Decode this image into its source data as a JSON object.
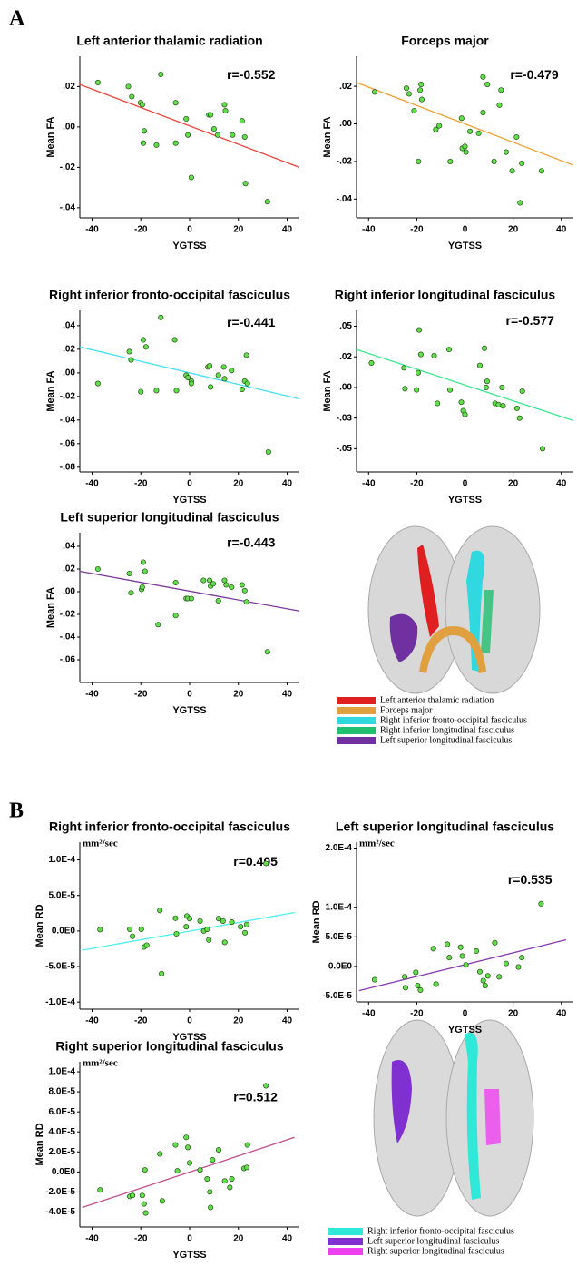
{
  "panel_labels": [
    "A",
    "B"
  ],
  "legend_a": [
    {
      "name": "Left anterior thalamic radiation",
      "color": "#e02020"
    },
    {
      "name": "Forceps major",
      "color": "#e0a040"
    },
    {
      "name": "Right inferior fronto-occipital fasciculus",
      "color": "#30d8e0"
    },
    {
      "name": "Right inferior longitudinal fasciculus",
      "color": "#20c070"
    },
    {
      "name": "Left superior longitudinal fasciculus",
      "color": "#7030a0"
    }
  ],
  "legend_b": [
    {
      "name": "Right inferior fronto-occipital fasciculus",
      "color": "#30e8d8"
    },
    {
      "name": "Left superior longitudinal fasciculus",
      "color": "#8030d0"
    },
    {
      "name": "Right superior longitudinal fasciculus",
      "color": "#f040f0"
    }
  ],
  "chart_data": [
    {
      "type": "scatter",
      "title": "Left anterior thalamic radiation",
      "xlabel": "YGTSS",
      "ylabel": "Mean FA",
      "annotation": "r=-0.552",
      "xlim": [
        -45,
        45
      ],
      "xticks": [
        -40,
        -20,
        0,
        20,
        40
      ],
      "ylim": [
        -0.045,
        0.035
      ],
      "yticks": [
        {
          "value": 0.02,
          "label": ".02"
        },
        {
          "value": 0,
          "label": ".00"
        },
        {
          "value": -0.02,
          "label": "-.02"
        },
        {
          "value": -0.04,
          "label": "-.04"
        }
      ],
      "points": {
        "color": "#5fe04a",
        "x": [
          -37.6,
          -25.1,
          -23.7,
          -20.1,
          -19.4,
          -11.8,
          -18.6,
          -19,
          -13.6,
          -5.7,
          -5.7,
          -1.4,
          -0.7,
          0.7,
          7.9,
          8.6,
          10,
          11.5,
          14.3,
          14.7,
          17.6,
          21.5,
          22.6,
          22.9,
          31.9
        ],
        "y": [
          0.022,
          0.02,
          0.015,
          0.012,
          0.011,
          0.026,
          -0.002,
          -0.008,
          -0.009,
          0.012,
          -0.008,
          0.004,
          -0.004,
          -0.025,
          0.006,
          0.006,
          -0.001,
          -0.004,
          0.011,
          0.008,
          -0.004,
          0.003,
          -0.005,
          -0.028,
          -0.037
        ]
      },
      "fit_line": {
        "color": "#e8453c",
        "x": [
          -45,
          45
        ],
        "y": [
          0.021,
          -0.02
        ]
      }
    },
    {
      "type": "scatter",
      "title": "Forceps major",
      "xlabel": "YGTSS",
      "ylabel": "Mean FA",
      "annotation": "r=-0.479",
      "xlim": [
        -45,
        45
      ],
      "xticks": [
        -40,
        -20,
        0,
        20,
        40
      ],
      "ylim": [
        -0.05,
        0.036
      ],
      "yticks": [
        {
          "value": 0.02,
          "label": ".02"
        },
        {
          "value": 0,
          "label": ".00"
        },
        {
          "value": -0.02,
          "label": "-.02"
        },
        {
          "value": -0.04,
          "label": "-.04"
        }
      ],
      "points": {
        "color": "#5fe04a",
        "x": [
          -37.5,
          -24.3,
          -23.2,
          -18.2,
          -18.6,
          -17.9,
          -21.1,
          -19.3,
          -12.1,
          -10.7,
          -6.1,
          -1.4,
          -1.1,
          0,
          0.4,
          2.1,
          5.7,
          7.5,
          7.5,
          9.3,
          12.1,
          14.3,
          15,
          17.1,
          19.6,
          21.4,
          23.6,
          22.9,
          31.8
        ],
        "y": [
          0.017,
          0.019,
          0.016,
          0.021,
          0.018,
          0.013,
          0.007,
          -0.02,
          -0.003,
          -0.001,
          -0.02,
          0.003,
          -0.013,
          -0.012,
          -0.015,
          -0.004,
          -0.005,
          0.025,
          0.006,
          0.021,
          -0.02,
          0.01,
          0.018,
          -0.015,
          -0.025,
          -0.007,
          -0.021,
          -0.042,
          -0.025
        ]
      },
      "fit_line": {
        "color": "#f0a030",
        "x": [
          -45,
          45
        ],
        "y": [
          0.022,
          -0.022
        ]
      }
    },
    {
      "type": "scatter",
      "title": "Right inferior fronto-occipital fasciculus",
      "xlabel": "YGTSS",
      "ylabel": "Mean FA",
      "annotation": "r=-0.441",
      "xlim": [
        -45,
        45
      ],
      "xticks": [
        -40,
        -20,
        0,
        20,
        40
      ],
      "ylim": [
        -0.084,
        0.053
      ],
      "yticks": [
        {
          "value": 0.04,
          "label": ".04"
        },
        {
          "value": 0.02,
          "label": ".02"
        },
        {
          "value": 0,
          "label": ".00"
        },
        {
          "value": -0.02,
          "label": "-.02"
        },
        {
          "value": -0.04,
          "label": "-.04"
        },
        {
          "value": -0.06,
          "label": "-.06"
        },
        {
          "value": -0.08,
          "label": "-.08"
        }
      ],
      "points": {
        "color": "#5fe04a",
        "x": [
          -37.6,
          -24.7,
          -24,
          -20,
          -19,
          -17.9,
          -13.6,
          -11.8,
          -6.1,
          -5.4,
          -1.4,
          -0.7,
          0.7,
          0.7,
          7.5,
          8.2,
          8.6,
          11.8,
          14,
          14.3,
          17.2,
          21.5,
          22.6,
          23.3,
          23.7,
          32.3
        ],
        "y": [
          -0.009,
          0.018,
          0.011,
          -0.016,
          0.028,
          0.022,
          -0.015,
          0.047,
          0.028,
          -0.015,
          -0.002,
          -0.004,
          -0.007,
          -0.009,
          0.005,
          0.006,
          -0.012,
          -0.002,
          0.005,
          -0.005,
          0.002,
          -0.014,
          -0.007,
          0.015,
          -0.009,
          -0.067
        ]
      },
      "fit_line": {
        "color": "#40e0f0",
        "x": [
          -45,
          45
        ],
        "y": [
          0.022,
          -0.022
        ]
      }
    },
    {
      "type": "scatter",
      "title": "Right inferior longitudinal fasciculus",
      "xlabel": "YGTSS",
      "ylabel": "Mean FA",
      "annotation": "r=-0.577",
      "xlim": [
        -45,
        45
      ],
      "xticks": [
        -40,
        -20,
        0,
        20,
        40
      ],
      "ylim": [
        -0.069,
        0.063
      ],
      "yticks": [
        {
          "value": 0.05,
          "label": ".05"
        },
        {
          "value": 0.025,
          "label": ".02"
        },
        {
          "value": 0,
          "label": ".00"
        },
        {
          "value": -0.025,
          "label": "-.03"
        },
        {
          "value": -0.05,
          "label": "-.05"
        }
      ],
      "points": {
        "color": "#5fe04a",
        "x": [
          -38.8,
          -25.3,
          -24.9,
          -20.1,
          -19.4,
          -19,
          -18.3,
          -12.8,
          -11.4,
          -6.6,
          -6.2,
          -1.5,
          -0.7,
          0,
          6.2,
          8.1,
          8.8,
          9.2,
          12.5,
          13.9,
          15.4,
          15.8,
          21.6,
          22.7,
          23.8,
          32.2
        ],
        "y": [
          0.02,
          0.016,
          -0.001,
          -0.002,
          0.012,
          0.047,
          0.027,
          0.026,
          -0.013,
          0.031,
          -0.002,
          -0.012,
          -0.019,
          -0.022,
          0.018,
          0.032,
          0,
          0.005,
          -0.013,
          -0.014,
          0,
          -0.015,
          -0.017,
          -0.025,
          -0.003,
          -0.05
        ]
      },
      "fit_line": {
        "color": "#3ee890",
        "x": [
          -45,
          45
        ],
        "y": [
          0.031,
          -0.027
        ]
      }
    },
    {
      "type": "scatter",
      "title": "Left superior longitudinal fasciculus",
      "xlabel": "YGTSS",
      "ylabel": "Mean FA",
      "annotation": "r=-0.443",
      "xlim": [
        -45,
        45
      ],
      "xticks": [
        -40,
        -20,
        0,
        20,
        40
      ],
      "ylim": [
        -0.08,
        0.052
      ],
      "yticks": [
        {
          "value": 0.04,
          "label": ".04"
        },
        {
          "value": 0.02,
          "label": ".02"
        },
        {
          "value": 0,
          "label": ".00"
        },
        {
          "value": -0.02,
          "label": "-.02"
        },
        {
          "value": -0.04,
          "label": "-.04"
        },
        {
          "value": -0.06,
          "label": "-.06"
        }
      ],
      "points": {
        "color": "#5fe04a",
        "x": [
          -37.6,
          -24.7,
          -24,
          -19.7,
          -19,
          -18.3,
          -19.4,
          -12.9,
          -5.7,
          -5.7,
          -1.4,
          -0.7,
          0.7,
          5.7,
          8.2,
          8.6,
          9.7,
          11.8,
          14.3,
          15,
          17.2,
          21.5,
          22.6,
          23.3,
          31.9
        ],
        "y": [
          0.02,
          0.016,
          -0.001,
          0.002,
          0.026,
          0.018,
          0.004,
          -0.029,
          0.008,
          -0.021,
          -0.006,
          -0.006,
          -0.006,
          0.01,
          0.01,
          0.005,
          0.007,
          -0.008,
          0.01,
          0.006,
          0.004,
          0.006,
          0.001,
          -0.009,
          -0.053
        ]
      },
      "fit_line": {
        "color": "#7a3a9a",
        "x": [
          -45,
          45
        ],
        "y": [
          0.018,
          -0.017
        ]
      }
    },
    {
      "type": "scatter",
      "title": "Right inferior fronto-occipital fasciculus",
      "xlabel": "YGTSS",
      "ylabel": "Mean RD",
      "unit": "mm²/sec",
      "annotation": "r=0.405",
      "xlim": [
        -45,
        45
      ],
      "xticks": [
        -40,
        -20,
        0,
        20,
        40
      ],
      "ylim": [
        -0.00011,
        0.000125
      ],
      "yticks": [
        {
          "value": 0.0001,
          "label": "1.0E-4"
        },
        {
          "value": 5e-05,
          "label": "5.0E-5"
        },
        {
          "value": 0,
          "label": "0.0E0"
        },
        {
          "value": -5e-05,
          "label": "-5.0E-5"
        },
        {
          "value": -0.0001,
          "label": "-1.0E-4"
        }
      ],
      "points": {
        "color": "#5fe04a",
        "x": [
          -36.7,
          -24.5,
          -23.4,
          -19.8,
          -18.7,
          -17.6,
          -12.2,
          -11.5,
          -5.8,
          -5.4,
          -1.4,
          -1.1,
          0,
          4.3,
          5.8,
          7.2,
          7.9,
          11.9,
          13.7,
          14.4,
          17.3,
          20.9,
          22.7,
          23.4,
          31.3
        ],
        "y": [
          2e-06,
          2.5e-06,
          -7.5e-06,
          2.5e-06,
          -2.25e-05,
          -2e-05,
          2.9e-05,
          -6e-05,
          1.8e-05,
          -4e-06,
          6e-06,
          2.1e-05,
          1.75e-05,
          1.4e-05,
          0,
          2.5e-06,
          -1.25e-05,
          1.75e-05,
          1.4e-05,
          -1.6e-05,
          1.25e-05,
          6e-06,
          -2.5e-06,
          9e-06,
          9.5e-05
        ]
      },
      "fit_line": {
        "color": "#50f0f0",
        "x": [
          -44,
          43
        ],
        "y": [
          -2.7e-05,
          2.6e-05
        ]
      }
    },
    {
      "type": "scatter",
      "title": "Left superior longitudinal fasciculus",
      "xlabel": "YGTSS",
      "ylabel": "Mean RD",
      "unit": "mm²/sec",
      "annotation": "r=0.535",
      "xlim": [
        -45,
        45
      ],
      "xticks": [
        -40,
        -20,
        0,
        20,
        40
      ],
      "ylim": [
        -6e-05,
        0.00021
      ],
      "yticks": [
        {
          "value": 0.0002,
          "label": "2.0E-4"
        },
        {
          "value": 0.0001,
          "label": "1.0E-4"
        },
        {
          "value": 5e-05,
          "label": "5.0E-5"
        },
        {
          "value": 0,
          "label": "0.0E0"
        },
        {
          "value": -5e-05,
          "label": "-5.0E-5"
        }
      ],
      "points": {
        "color": "#5fe04a",
        "x": [
          -37.5,
          -25,
          -24.7,
          -20.4,
          -19.6,
          -18.5,
          -13.1,
          -12,
          -7.3,
          -6.5,
          -1.8,
          -1.1,
          0.4,
          4.7,
          6.2,
          7.6,
          8.4,
          9.5,
          12.4,
          14.2,
          17.1,
          22.2,
          23.6,
          31.6
        ],
        "y": [
          -2.25e-05,
          -1.75e-05,
          -3.6e-05,
          -1e-05,
          -3.25e-05,
          -4e-05,
          3e-05,
          -3e-05,
          3.75e-05,
          1.5e-05,
          3.25e-05,
          1.75e-05,
          2.5e-06,
          2.6e-05,
          -9e-06,
          -2.4e-05,
          -3.25e-05,
          -1.6e-05,
          4e-05,
          -1.75e-05,
          5e-06,
          -1e-06,
          1.5e-05,
          0.000106
        ]
      },
      "fit_line": {
        "color": "#8a3ab0",
        "x": [
          -44,
          42
        ],
        "y": [
          -4.1e-05,
          4.5e-05
        ]
      }
    },
    {
      "type": "scatter",
      "title": "Right superior longitudinal fasciculus",
      "xlabel": "YGTSS",
      "ylabel": "Mean RD",
      "unit": "mm²/sec",
      "annotation": "r=0.512",
      "xlim": [
        -45,
        45
      ],
      "xticks": [
        -40,
        -20,
        0,
        20,
        40
      ],
      "ylim": [
        -5.5e-05,
        0.00011
      ],
      "yticks": [
        {
          "value": 0.0001,
          "label": "1.0E-4"
        },
        {
          "value": 8e-05,
          "label": "8.0E-5"
        },
        {
          "value": 6e-05,
          "label": "6.0E-5"
        },
        {
          "value": 4e-05,
          "label": "4.0E-5"
        },
        {
          "value": 2e-05,
          "label": "2.0E-5"
        },
        {
          "value": 0,
          "label": "0.0E0"
        },
        {
          "value": -2e-05,
          "label": "-2.0E-5"
        },
        {
          "value": -4e-05,
          "label": "-4.0E-5"
        }
      ],
      "points": {
        "color": "#5fe04a",
        "x": [
          -36.7,
          -24.5,
          -23.4,
          -19.4,
          -18.7,
          -18.3,
          -18,
          -12.2,
          -11.2,
          -5.8,
          -5,
          -1.4,
          -0.7,
          0,
          4.3,
          7.2,
          8.3,
          8.6,
          9.4,
          11.9,
          14.4,
          16.5,
          17.3,
          22.3,
          23.4,
          23.7,
          31.3
        ],
        "y": [
          -1.8e-05,
          -2.45e-05,
          -2.35e-05,
          -2.35e-05,
          -3.2e-05,
          2e-06,
          -4.1e-05,
          1.8e-05,
          -2.9e-05,
          2.7e-05,
          1e-06,
          3.45e-05,
          2.45e-05,
          9e-06,
          2e-06,
          -7e-06,
          -2e-05,
          -3.55e-05,
          1.2e-05,
          2.2e-05,
          -9e-06,
          -1.55e-05,
          -7e-06,
          3.5e-06,
          4.5e-06,
          2.7e-05,
          8.6e-05
        ]
      },
      "fit_line": {
        "color": "#c0508a",
        "x": [
          -44,
          43
        ],
        "y": [
          -3.55e-05,
          3.45e-05
        ]
      }
    }
  ]
}
